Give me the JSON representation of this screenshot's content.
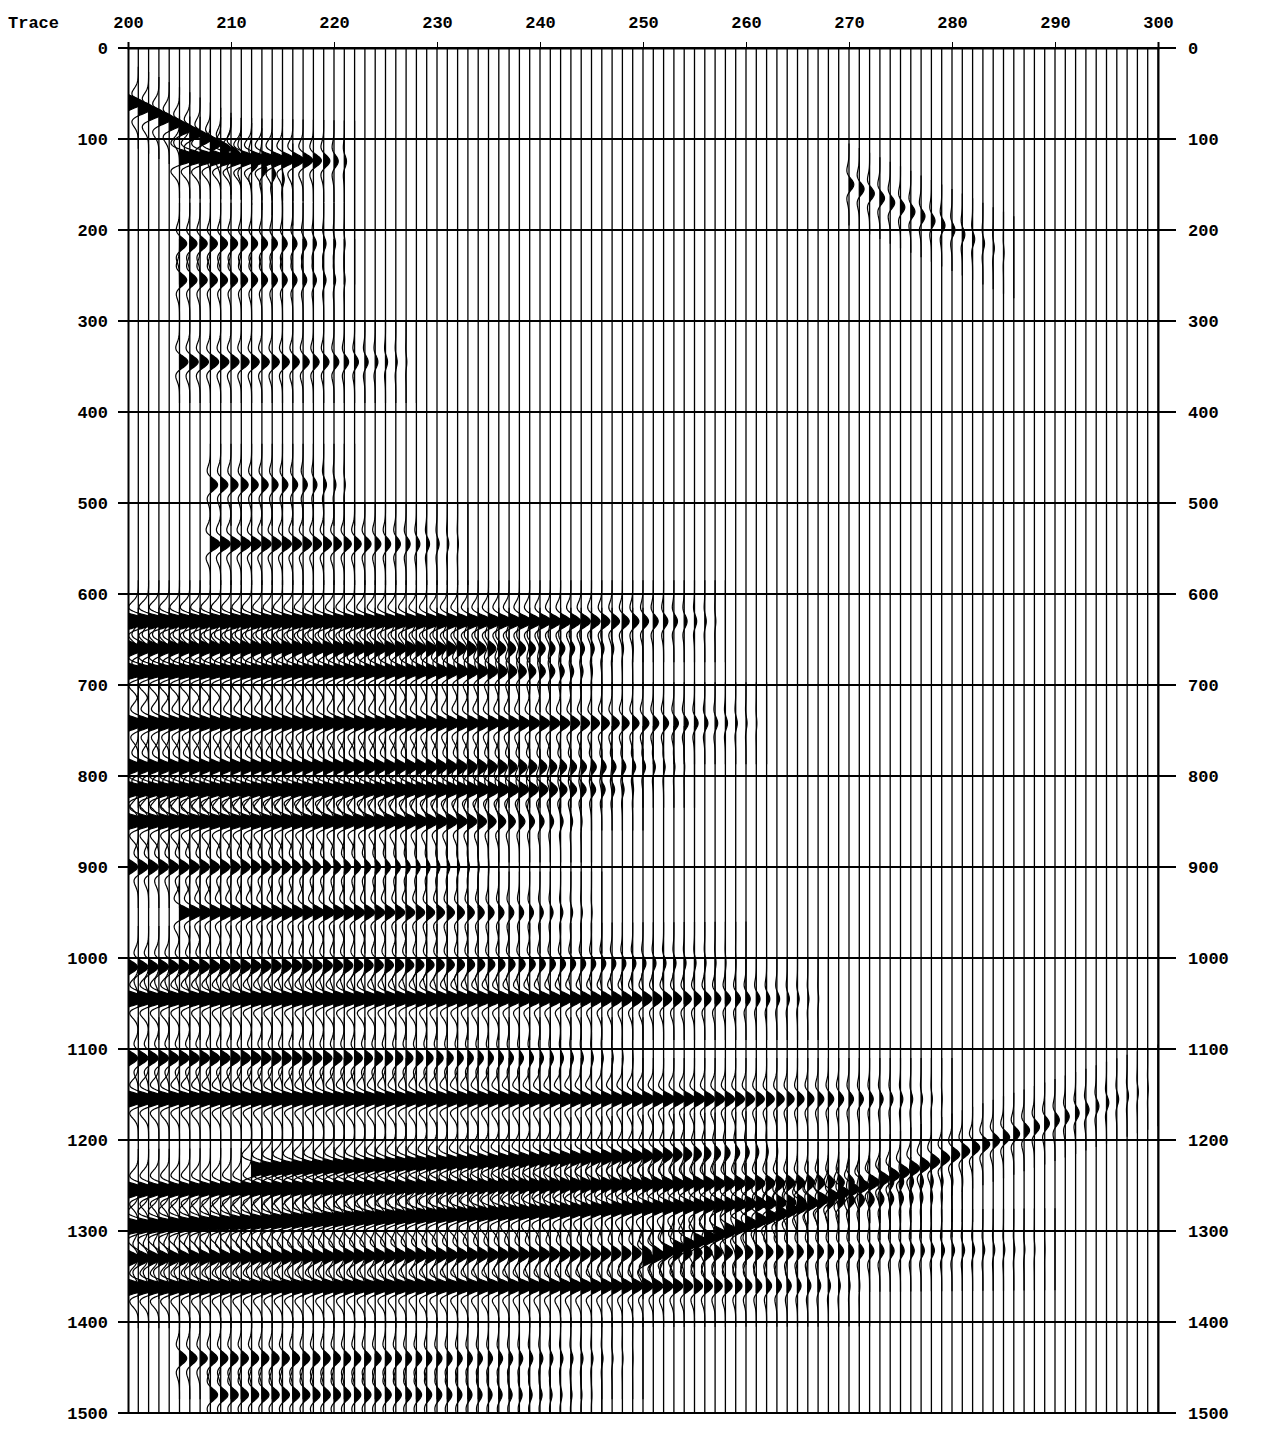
{
  "chart_data": {
    "type": "wiggle",
    "x_label": "Trace",
    "xlim": [
      200,
      300
    ],
    "xticks": [
      200,
      210,
      220,
      230,
      240,
      250,
      260,
      270,
      280,
      290,
      300
    ],
    "ylim": [
      0,
      1500
    ],
    "yticks": [
      0,
      100,
      200,
      300,
      400,
      500,
      600,
      700,
      800,
      900,
      1000,
      1100,
      1200,
      1300,
      1400,
      1500
    ],
    "grid": true,
    "color": "#000000",
    "traces": [
      200,
      201,
      202,
      203,
      204,
      205,
      206,
      207,
      208,
      209,
      210,
      211,
      212,
      213,
      214,
      215,
      216,
      217,
      218,
      219,
      220,
      221,
      222,
      223,
      224,
      225,
      226,
      227,
      228,
      229,
      230,
      231,
      232,
      233,
      234,
      235,
      236,
      237,
      238,
      239,
      240,
      241,
      242,
      243,
      244,
      245,
      246,
      247,
      248,
      249,
      250,
      251,
      252,
      253,
      254,
      255,
      256,
      257,
      258,
      259,
      260,
      261,
      262,
      263,
      264,
      265,
      266,
      267,
      268,
      269,
      270,
      271,
      272,
      273,
      274,
      275,
      276,
      277,
      278,
      279,
      280,
      281,
      282,
      283,
      284,
      285,
      286,
      287,
      288,
      289,
      290,
      291,
      292,
      293,
      294,
      295,
      296,
      297,
      298,
      299,
      300
    ],
    "events": [
      {
        "trace_start": 200,
        "trace_end": 216,
        "time_start": 60,
        "time_end": 150,
        "amplitude": 0.6
      },
      {
        "trace_start": 205,
        "trace_end": 222,
        "time_start": 120,
        "time_end": 125,
        "amplitude": 0.8
      },
      {
        "trace_start": 205,
        "trace_end": 222,
        "time_start": 215,
        "time_end": 215,
        "amplitude": 0.3
      },
      {
        "trace_start": 205,
        "trace_end": 222,
        "time_start": 255,
        "time_end": 255,
        "amplitude": 0.3
      },
      {
        "trace_start": 205,
        "trace_end": 228,
        "time_start": 345,
        "time_end": 345,
        "amplitude": 0.35
      },
      {
        "trace_start": 208,
        "trace_end": 222,
        "time_start": 480,
        "time_end": 480,
        "amplitude": 0.3
      },
      {
        "trace_start": 208,
        "trace_end": 233,
        "time_start": 545,
        "time_end": 545,
        "amplitude": 0.4
      },
      {
        "trace_start": 270,
        "trace_end": 286,
        "time_start": 150,
        "time_end": 230,
        "amplitude": 0.2
      },
      {
        "trace_start": 200,
        "trace_end": 258,
        "time_start": 630,
        "time_end": 630,
        "amplitude": 0.9
      },
      {
        "trace_start": 200,
        "trace_end": 250,
        "time_start": 660,
        "time_end": 660,
        "amplitude": 0.6
      },
      {
        "trace_start": 200,
        "trace_end": 246,
        "time_start": 685,
        "time_end": 685,
        "amplitude": 0.9
      },
      {
        "trace_start": 200,
        "trace_end": 262,
        "time_start": 742,
        "time_end": 742,
        "amplitude": 0.7
      },
      {
        "trace_start": 200,
        "trace_end": 255,
        "time_start": 790,
        "time_end": 790,
        "amplitude": 0.6
      },
      {
        "trace_start": 200,
        "trace_end": 250,
        "time_start": 815,
        "time_end": 815,
        "amplitude": 0.9
      },
      {
        "trace_start": 200,
        "trace_end": 245,
        "time_start": 850,
        "time_end": 850,
        "amplitude": 0.8
      },
      {
        "trace_start": 200,
        "trace_end": 236,
        "time_start": 900,
        "time_end": 900,
        "amplitude": 0.4
      },
      {
        "trace_start": 205,
        "trace_end": 246,
        "time_start": 950,
        "time_end": 950,
        "amplitude": 0.5
      },
      {
        "trace_start": 200,
        "trace_end": 260,
        "time_start": 1010,
        "time_end": 1005,
        "amplitude": 0.4
      },
      {
        "trace_start": 200,
        "trace_end": 268,
        "time_start": 1045,
        "time_end": 1045,
        "amplitude": 0.8
      },
      {
        "trace_start": 200,
        "trace_end": 250,
        "time_start": 1110,
        "time_end": 1110,
        "amplitude": 0.4
      },
      {
        "trace_start": 200,
        "trace_end": 280,
        "time_start": 1155,
        "time_end": 1155,
        "amplitude": 0.8
      },
      {
        "trace_start": 212,
        "trace_end": 264,
        "time_start": 1232,
        "time_end": 1212,
        "amplitude": 0.9
      },
      {
        "trace_start": 200,
        "trace_end": 282,
        "time_start": 1255,
        "time_end": 1245,
        "amplitude": 0.8
      },
      {
        "trace_start": 200,
        "trace_end": 280,
        "time_start": 1295,
        "time_end": 1262,
        "amplitude": 1.0
      },
      {
        "trace_start": 250,
        "trace_end": 300,
        "time_start": 1330,
        "time_end": 1140,
        "amplitude": 0.5
      },
      {
        "trace_start": 200,
        "trace_end": 290,
        "time_start": 1330,
        "time_end": 1320,
        "amplitude": 0.5
      },
      {
        "trace_start": 200,
        "trace_end": 272,
        "time_start": 1362,
        "time_end": 1360,
        "amplitude": 0.8
      },
      {
        "trace_start": 205,
        "trace_end": 250,
        "time_start": 1440,
        "time_end": 1440,
        "amplitude": 0.3
      },
      {
        "trace_start": 208,
        "trace_end": 246,
        "time_start": 1480,
        "time_end": 1480,
        "amplitude": 0.3
      }
    ]
  }
}
